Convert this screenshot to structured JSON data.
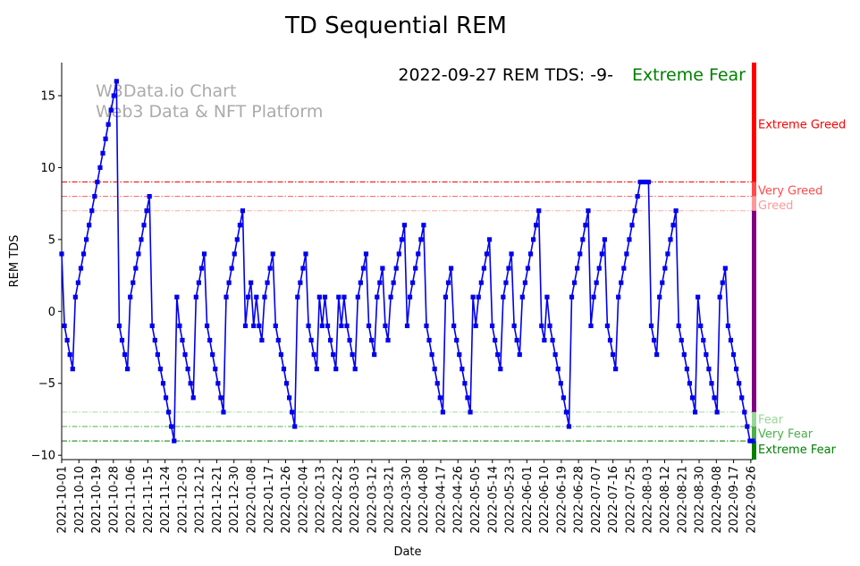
{
  "chart_data": {
    "type": "line",
    "title": "TD Sequential REM",
    "xlabel": "Date",
    "ylabel": "REM TDS",
    "ylim": [
      -10.3,
      17.3
    ],
    "yticks": [
      -10,
      -5,
      0,
      5,
      10,
      15
    ],
    "x_start": "2021-10-01",
    "x_end": "2022-09-27",
    "xtick_labels": [
      "2021-10-01",
      "2021-10-10",
      "2021-10-19",
      "2021-10-28",
      "2021-11-06",
      "2021-11-15",
      "2021-11-24",
      "2021-12-03",
      "2021-12-12",
      "2021-12-21",
      "2021-12-30",
      "2022-01-08",
      "2022-01-17",
      "2022-01-26",
      "2022-02-04",
      "2022-02-13",
      "2022-02-22",
      "2022-03-03",
      "2022-03-12",
      "2022-03-21",
      "2022-03-30",
      "2022-04-08",
      "2022-04-17",
      "2022-04-26",
      "2022-05-05",
      "2022-05-14",
      "2022-05-23",
      "2022-06-01",
      "2022-06-10",
      "2022-06-19",
      "2022-06-28",
      "2022-07-07",
      "2022-07-16",
      "2022-07-25",
      "2022-08-03",
      "2022-08-12",
      "2022-08-21",
      "2022-08-30",
      "2022-09-08",
      "2022-09-17",
      "2022-09-26"
    ],
    "watermark": [
      "W3Data.io Chart",
      "Web3 Data & NFT Platform"
    ],
    "annotation": {
      "text": "2022-09-27 REM TDS: -9-",
      "status": "Extreme Fear",
      "status_color": "#008000"
    },
    "line_color": "#0000ee",
    "series": [
      {
        "values": [
          4,
          -1,
          -2,
          -3,
          -4,
          1,
          2,
          3,
          4,
          5,
          6,
          7,
          8,
          9,
          10,
          11,
          12,
          13,
          14,
          15,
          16,
          -1,
          -2,
          -3,
          -4,
          1,
          2,
          3,
          4,
          5,
          6,
          7,
          8,
          -1,
          -2,
          -3,
          -4,
          -5,
          -6,
          -7,
          -8,
          -9,
          1,
          -1,
          -2,
          -3,
          -4,
          -5,
          -6,
          1,
          2,
          3,
          4,
          -1,
          -2,
          -3,
          -4,
          -5,
          -6,
          -7,
          1,
          2,
          3,
          4,
          5,
          6,
          7,
          -1,
          1,
          2,
          -1,
          1,
          -1,
          -2,
          1,
          2,
          3,
          4,
          -1,
          -2,
          -3,
          -4,
          -5,
          -6,
          -7,
          -8,
          1,
          2,
          3,
          4,
          -1,
          -2,
          -3,
          -4,
          1,
          -1,
          1,
          -1,
          -2,
          -3,
          -4,
          1,
          -1,
          1,
          -1,
          -2,
          -3,
          -4,
          1,
          2,
          3,
          4,
          -1,
          -2,
          -3,
          1,
          2,
          3,
          -1,
          -2,
          1,
          2,
          3,
          4,
          5,
          6,
          -1,
          1,
          2,
          3,
          4,
          5,
          6,
          -1,
          -2,
          -3,
          -4,
          -5,
          -6,
          -7,
          1,
          2,
          3,
          -1,
          -2,
          -3,
          -4,
          -5,
          -6,
          -7,
          1,
          -1,
          1,
          2,
          3,
          4,
          5,
          -1,
          -2,
          -3,
          -4,
          1,
          2,
          3,
          4,
          -1,
          -2,
          -3,
          1,
          2,
          3,
          4,
          5,
          6,
          7,
          -1,
          -2,
          1,
          -1,
          -2,
          -3,
          -4,
          -5,
          -6,
          -7,
          -8,
          1,
          2,
          3,
          4,
          5,
          6,
          7,
          -1,
          1,
          2,
          3,
          4,
          5,
          -1,
          -2,
          -3,
          -4,
          1,
          2,
          3,
          4,
          5,
          6,
          7,
          8,
          9,
          9,
          9,
          9,
          -1,
          -2,
          -3,
          1,
          2,
          3,
          4,
          5,
          6,
          7,
          -1,
          -2,
          -3,
          -4,
          -5,
          -6,
          -7,
          1,
          -1,
          -2,
          -3,
          -4,
          -5,
          -6,
          -7,
          1,
          2,
          3,
          -1,
          -2,
          -3,
          -4,
          -5,
          -6,
          -7,
          -8,
          -9,
          -9
        ]
      }
    ],
    "reference_lines": [
      {
        "value": 9,
        "color": "#ff0000"
      },
      {
        "value": 8,
        "color": "#ff5a5a"
      },
      {
        "value": 7,
        "color": "#ffaaaa"
      },
      {
        "value": -7,
        "color": "#a6d9a6"
      },
      {
        "value": -8,
        "color": "#4fb04f"
      },
      {
        "value": -9,
        "color": "#007a00"
      }
    ],
    "zones": [
      {
        "label": "Extreme Greed",
        "from": 9,
        "to": 17.3,
        "color": "#ff0000",
        "label_value": 13
      },
      {
        "label": "Very Greed",
        "from": 8,
        "to": 9,
        "color": "#ff4c4c",
        "label_value": 8.4
      },
      {
        "label": "Greed",
        "from": 7,
        "to": 8,
        "color": "#ff9999",
        "label_value": 7.4
      },
      {
        "label": "",
        "from": -7,
        "to": 7,
        "color": "#800080"
      },
      {
        "label": "Fear",
        "from": -8,
        "to": -7,
        "color": "#99d699",
        "label_value": -7.5
      },
      {
        "label": "Very Fear",
        "from": -9,
        "to": -8,
        "color": "#4caf4c",
        "label_value": -8.5
      },
      {
        "label": "Extreme Fear",
        "from": -10.3,
        "to": -9,
        "color": "#008000",
        "label_value": -9.6
      }
    ]
  }
}
